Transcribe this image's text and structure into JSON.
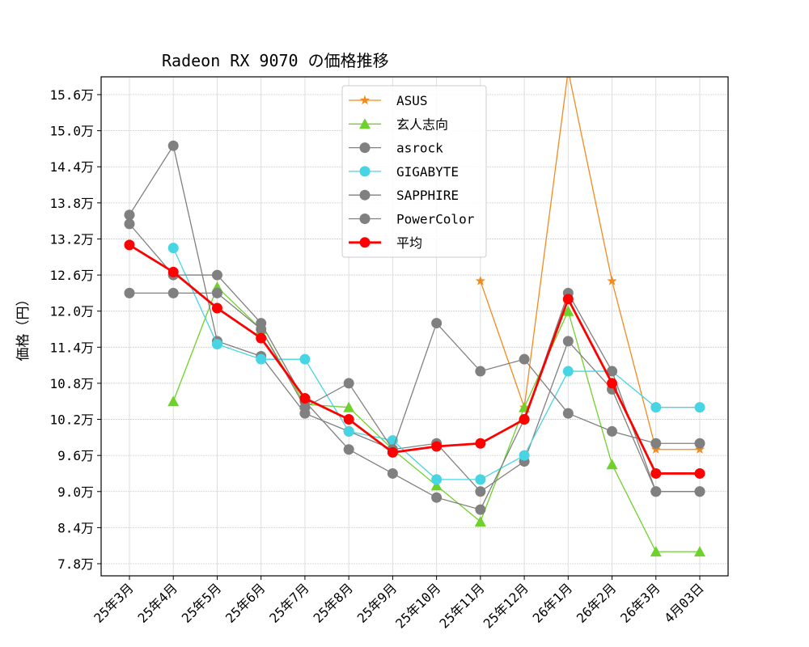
{
  "chart_data": {
    "type": "line",
    "title": "Radeon RX 9070 の価格推移",
    "xlabel": "",
    "ylabel": "価格（円）",
    "categories": [
      "25年3月",
      "25年4月",
      "25年5月",
      "25年6月",
      "25年7月",
      "25年8月",
      "25年9月",
      "25年10月",
      "25年11月",
      "25年12月",
      "26年1月",
      "26年2月",
      "26年3月",
      "4月03日"
    ],
    "yticks": [
      7.8,
      8.4,
      9.0,
      9.6,
      10.2,
      10.8,
      11.4,
      12.0,
      12.6,
      13.2,
      13.8,
      14.4,
      15.0,
      15.6
    ],
    "ytick_labels": [
      "7.8万",
      "8.4万",
      "9.0万",
      "9.6万",
      "10.2万",
      "10.8万",
      "11.4万",
      "12.0万",
      "12.6万",
      "13.2万",
      "13.8万",
      "14.4万",
      "15.0万",
      "15.6万"
    ],
    "ylim": [
      7.65,
      15.9
    ],
    "y_unit": "万円",
    "grid": true,
    "legend_position": "upper-center",
    "series": [
      {
        "name": "ASUS",
        "color": "#f28a1e",
        "marker": "star",
        "width": 1.3,
        "values": [
          null,
          null,
          null,
          null,
          null,
          null,
          null,
          null,
          12.5,
          10.4,
          16.0,
          12.5,
          9.7,
          9.7
        ]
      },
      {
        "name": "玄人志向",
        "color": "#6fd12b",
        "marker": "triangle",
        "width": 1.3,
        "values": [
          null,
          10.5,
          12.4,
          11.7,
          10.45,
          10.4,
          9.7,
          9.1,
          8.5,
          10.4,
          12.0,
          9.45,
          8.0,
          8.0
        ]
      },
      {
        "name": "asrock",
        "color": "#808080",
        "marker": "circle",
        "width": 1.3,
        "values": [
          13.6,
          14.75,
          11.5,
          11.25,
          10.3,
          10.0,
          9.7,
          9.8,
          9.0,
          9.5,
          11.5,
          10.7,
          9.0,
          9.0
        ]
      },
      {
        "name": "GIGABYTE",
        "color": "#47d4e3",
        "marker": "circle",
        "width": 1.3,
        "values": [
          null,
          13.05,
          11.45,
          11.2,
          11.2,
          10.0,
          9.85,
          9.2,
          9.2,
          9.6,
          11.0,
          11.0,
          10.4,
          10.4
        ]
      },
      {
        "name": "SAPPHIRE",
        "color": "#808080",
        "marker": "circle",
        "width": 1.3,
        "values": [
          13.45,
          12.6,
          12.6,
          11.8,
          10.5,
          9.7,
          9.3,
          8.9,
          8.7,
          10.2,
          12.3,
          11.0,
          9.0,
          9.0
        ]
      },
      {
        "name": "PowerColor",
        "color": "#808080",
        "marker": "circle",
        "width": 1.3,
        "values": [
          12.3,
          12.3,
          12.3,
          11.7,
          10.4,
          10.8,
          9.7,
          11.8,
          11.0,
          11.2,
          10.3,
          10.0,
          9.8,
          9.8
        ]
      },
      {
        "name": "平均",
        "color": "#ff0000",
        "marker": "circle",
        "width": 2.8,
        "values": [
          13.1,
          12.65,
          12.05,
          11.55,
          10.55,
          10.2,
          9.65,
          9.75,
          9.8,
          10.2,
          12.2,
          10.8,
          9.3,
          9.3
        ]
      }
    ]
  }
}
